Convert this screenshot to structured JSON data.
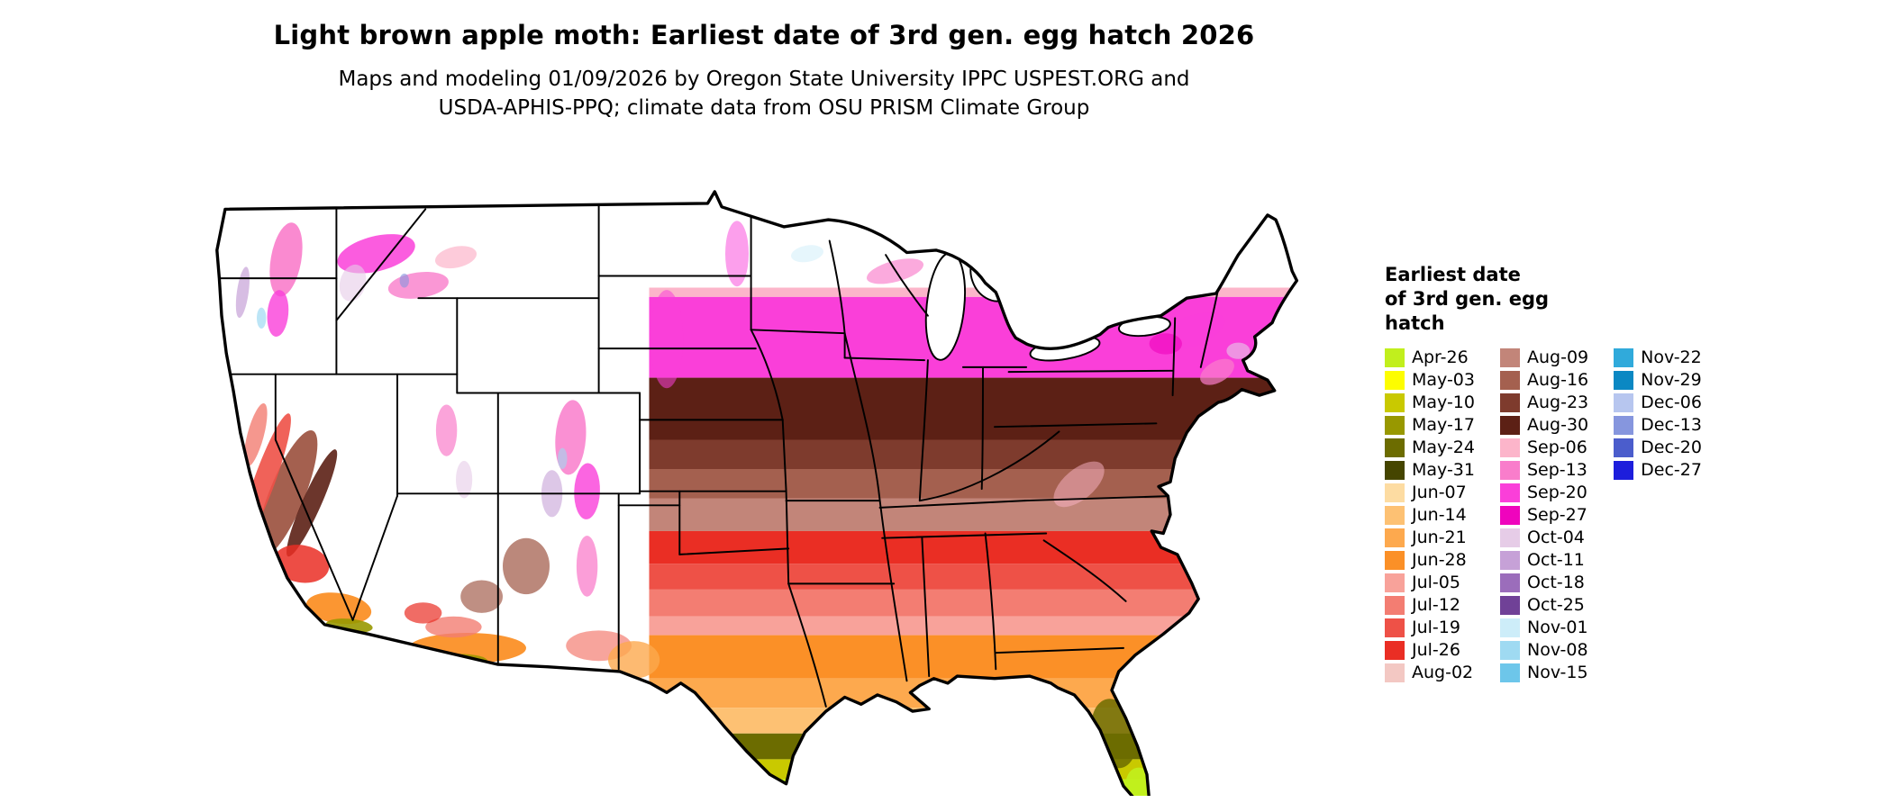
{
  "header": {
    "title": "Light brown apple moth: Earliest date of 3rd gen. egg hatch 2026",
    "subtitle_line1": "Maps and modeling 01/09/2026 by Oregon State University IPPC USPEST.ORG and",
    "subtitle_line2": "USDA-APHIS-PPQ; climate data from OSU PRISM Climate Group"
  },
  "legend": {
    "title_lines": [
      "Earliest date",
      "of 3rd gen. egg",
      "hatch"
    ],
    "columns": [
      {
        "items": [
          {
            "label": "Apr-26",
            "color": "#c1ef1d"
          },
          {
            "label": "May-03",
            "color": "#fdfd00"
          },
          {
            "label": "May-10",
            "color": "#c9c900"
          },
          {
            "label": "May-17",
            "color": "#989800"
          },
          {
            "label": "May-24",
            "color": "#6c6c00"
          },
          {
            "label": "May-31",
            "color": "#454500"
          },
          {
            "label": "Jun-07",
            "color": "#fddca2"
          },
          {
            "label": "Jun-14",
            "color": "#fdc173"
          },
          {
            "label": "Jun-21",
            "color": "#fda94e"
          },
          {
            "label": "Jun-28",
            "color": "#fb9027"
          },
          {
            "label": "Jul-05",
            "color": "#f8a29a"
          },
          {
            "label": "Jul-12",
            "color": "#f37d72"
          },
          {
            "label": "Jul-19",
            "color": "#ee5147"
          },
          {
            "label": "Jul-26",
            "color": "#ea2e24"
          },
          {
            "label": "Aug-02",
            "color": "#f3c8c3"
          }
        ]
      },
      {
        "items": [
          {
            "label": "Aug-09",
            "color": "#c28579"
          },
          {
            "label": "Aug-16",
            "color": "#a4604f"
          },
          {
            "label": "Aug-23",
            "color": "#7e3b2d"
          },
          {
            "label": "Aug-30",
            "color": "#5c2015"
          },
          {
            "label": "Sep-06",
            "color": "#fcb5ca"
          },
          {
            "label": "Sep-13",
            "color": "#f97dcb"
          },
          {
            "label": "Sep-20",
            "color": "#fa3fd9"
          },
          {
            "label": "Sep-27",
            "color": "#ef04bd"
          },
          {
            "label": "Oct-04",
            "color": "#e6cce7"
          },
          {
            "label": "Oct-11",
            "color": "#c6a1d7"
          },
          {
            "label": "Oct-18",
            "color": "#9b6dbb"
          },
          {
            "label": "Oct-25",
            "color": "#704197"
          },
          {
            "label": "Nov-01",
            "color": "#cdedf9"
          },
          {
            "label": "Nov-08",
            "color": "#9fdaf2"
          },
          {
            "label": "Nov-15",
            "color": "#6dc6ea"
          }
        ]
      },
      {
        "items": [
          {
            "label": "Nov-22",
            "color": "#30aadb"
          },
          {
            "label": "Nov-29",
            "color": "#0b88c3"
          },
          {
            "label": "Dec-06",
            "color": "#b7c6ef"
          },
          {
            "label": "Dec-13",
            "color": "#8696de"
          },
          {
            "label": "Dec-20",
            "color": "#4b5dcc"
          },
          {
            "label": "Dec-27",
            "color": "#1d1edc"
          }
        ]
      }
    ]
  },
  "map": {
    "background": "#ffffff",
    "border_color": "#000000",
    "band_labels_north_to_south": [
      "Sep-06",
      "Sep-20",
      "Aug-30",
      "Aug-23",
      "Aug-16",
      "Aug-09",
      "Jul-26",
      "Jul-19",
      "Jul-12",
      "Jul-05",
      "Jun-28",
      "Jun-21",
      "Jun-14",
      "May-24",
      "May-10",
      "Apr-26"
    ]
  }
}
